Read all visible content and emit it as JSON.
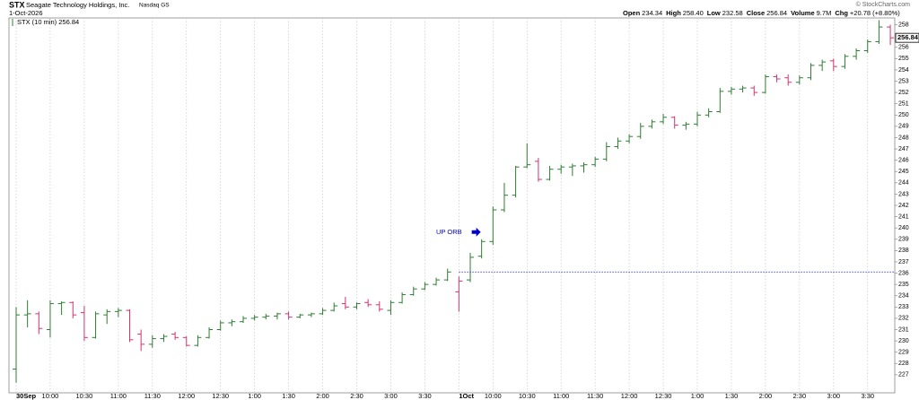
{
  "chart_data": {
    "type": "ohlc",
    "symbol": "STX",
    "name": "Seagate Technology Holdings, Inc.",
    "exchange": "Nasdaq GS",
    "date": "1-Oct-2026",
    "credit": "© StockCharts.com",
    "quote": [
      {
        "label": "Open",
        "value": "234.34"
      },
      {
        "label": "High",
        "value": "258.40"
      },
      {
        "label": "Low",
        "value": "232.58"
      },
      {
        "label": "Close",
        "value": "256.84"
      },
      {
        "label": "Volume",
        "value": "9.7M"
      },
      {
        "label": "Chg",
        "value": "+20.78 (+8.80%)"
      }
    ],
    "legend": "STX (10 min) 256.84",
    "annotation": {
      "text": "UP ORB",
      "color": "#0000cc"
    },
    "reference_line": {
      "value": 236.1,
      "color": "#1a1aa6"
    },
    "up_color": "#2e7d32",
    "down_color": "#d6336c",
    "categories": [
      "30Sep",
      null,
      null,
      "10:00",
      null,
      null,
      "10:30",
      null,
      null,
      "11:00",
      null,
      null,
      "11:30",
      null,
      null,
      "12:00",
      null,
      null,
      "12:30",
      null,
      null,
      "1:00",
      null,
      null,
      "1:30",
      null,
      null,
      "2:00",
      null,
      null,
      "2:30",
      null,
      null,
      "3:00",
      null,
      null,
      "3:30",
      null,
      null,
      "1Oct",
      null,
      null,
      "10:00",
      null,
      null,
      "10:30",
      null,
      null,
      "11:00",
      null,
      null,
      "11:30",
      null,
      null,
      "12:00",
      null,
      null,
      "12:30",
      null,
      null,
      "1:00",
      null,
      null,
      "1:30",
      null,
      null,
      "2:00",
      null,
      null,
      "2:30",
      null,
      null,
      "3:00",
      null,
      null,
      "3:30",
      null,
      null
    ],
    "open": [
      227.5,
      232.3,
      232.4,
      231.0,
      233.3,
      233.4,
      232.5,
      230.3,
      232.3,
      232.6,
      232.7,
      230.6,
      229.7,
      230.2,
      230.6,
      230.3,
      229.6,
      230.3,
      231.0,
      231.6,
      231.7,
      232.0,
      232.1,
      232.2,
      232.4,
      232.1,
      232.3,
      232.4,
      232.7,
      233.3,
      233.0,
      233.4,
      233.2,
      232.7,
      233.4,
      234.1,
      234.6,
      235.0,
      235.4,
      234.34,
      235.4,
      237.5,
      238.8,
      241.6,
      242.9,
      245.4,
      245.9,
      244.3,
      245.2,
      245.4,
      245.5,
      245.6,
      246.1,
      247.2,
      247.7,
      248.1,
      249.0,
      249.4,
      249.8,
      249.1,
      249.2,
      250.0,
      250.3,
      252.1,
      252.3,
      252.4,
      252.0,
      253.4,
      253.3,
      252.9,
      253.3,
      254.4,
      254.8,
      254.3,
      255.2,
      255.7,
      256.5,
      257.8
    ],
    "high": [
      233.0,
      233.6,
      232.6,
      233.6,
      233.5,
      233.5,
      233.1,
      232.6,
      232.8,
      232.9,
      232.8,
      231.0,
      230.5,
      230.6,
      230.8,
      230.4,
      230.5,
      231.2,
      231.8,
      231.9,
      232.2,
      232.3,
      232.4,
      232.5,
      232.6,
      232.4,
      232.5,
      232.9,
      233.4,
      233.9,
      233.4,
      233.7,
      233.5,
      233.6,
      234.3,
      234.8,
      235.2,
      235.6,
      236.4,
      235.7,
      237.8,
      239.0,
      241.9,
      244.0,
      245.5,
      247.5,
      246.2,
      245.5,
      245.6,
      245.7,
      245.8,
      246.3,
      247.6,
      248.0,
      248.3,
      249.3,
      249.6,
      250.1,
      249.9,
      249.4,
      250.3,
      250.6,
      252.4,
      252.5,
      252.6,
      252.6,
      253.6,
      253.6,
      253.6,
      253.5,
      254.6,
      254.9,
      255.0,
      255.4,
      255.9,
      256.7,
      258.4,
      258.0
    ],
    "low": [
      226.3,
      231.2,
      230.6,
      230.3,
      232.3,
      232.0,
      230.0,
      230.2,
      231.5,
      232.1,
      229.9,
      229.1,
      229.4,
      229.9,
      230.1,
      229.5,
      229.5,
      230.2,
      230.9,
      231.3,
      231.6,
      231.8,
      231.9,
      231.9,
      231.9,
      232.0,
      232.1,
      232.3,
      232.6,
      232.8,
      232.8,
      233.0,
      232.6,
      232.3,
      233.3,
      234.0,
      234.5,
      234.9,
      235.3,
      232.58,
      235.2,
      237.3,
      238.5,
      241.4,
      242.7,
      245.3,
      244.1,
      244.2,
      244.8,
      244.6,
      244.9,
      245.4,
      245.9,
      247.0,
      247.5,
      247.9,
      248.8,
      249.2,
      248.8,
      248.7,
      249.0,
      249.8,
      250.2,
      251.8,
      252.0,
      251.7,
      251.9,
      252.9,
      252.6,
      252.7,
      253.1,
      253.9,
      253.9,
      254.1,
      254.9,
      255.5,
      256.3,
      256.2
    ],
    "close": [
      232.3,
      232.4,
      231.1,
      233.3,
      233.4,
      232.3,
      230.3,
      232.4,
      232.6,
      232.7,
      230.1,
      229.7,
      230.2,
      230.4,
      230.3,
      229.6,
      230.3,
      231.0,
      231.6,
      231.7,
      232.0,
      232.1,
      232.2,
      232.4,
      232.1,
      232.3,
      232.4,
      232.7,
      233.1,
      233.0,
      233.3,
      233.2,
      232.8,
      233.4,
      234.1,
      234.6,
      235.0,
      235.4,
      236.1,
      235.3,
      237.4,
      238.8,
      241.6,
      242.9,
      245.4,
      245.6,
      244.3,
      245.2,
      245.4,
      245.5,
      245.6,
      246.1,
      247.2,
      247.7,
      248.1,
      249.0,
      249.4,
      249.8,
      249.1,
      249.2,
      250.0,
      250.3,
      252.1,
      252.3,
      252.4,
      252.0,
      253.4,
      253.2,
      252.9,
      253.3,
      254.4,
      254.7,
      254.3,
      255.2,
      255.7,
      256.5,
      257.8,
      256.84
    ],
    "ylim": [
      225.4,
      258.6
    ],
    "yticks": [
      227,
      228,
      229,
      230,
      231,
      232,
      233,
      234,
      235,
      236,
      237,
      238,
      239,
      240,
      241,
      242,
      243,
      244,
      245,
      246,
      247,
      248,
      249,
      250,
      251,
      252,
      253,
      254,
      255,
      256,
      257,
      258
    ],
    "grid": true
  }
}
